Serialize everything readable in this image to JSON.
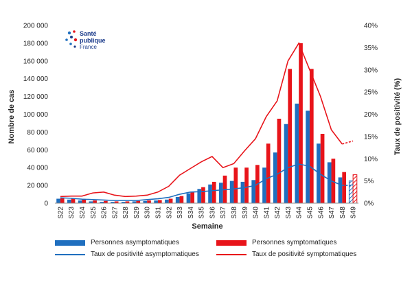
{
  "chart_data": {
    "type": "bar+line",
    "title": "",
    "logo": {
      "line1": "Santé",
      "line2": "publique",
      "line3": "France"
    },
    "xlabel": "Semaine",
    "ylabel": "Nombre de cas",
    "y2label": "Taux de positivité (%)",
    "ylim": [
      0,
      200000
    ],
    "y2lim": [
      0,
      40
    ],
    "yticks": [
      "0",
      "20 000",
      "40 000",
      "60 000",
      "80 000",
      "100 000",
      "120 000",
      "140 000",
      "160 000",
      "180 000",
      "200 000"
    ],
    "y2ticks": [
      "0%",
      "5%",
      "10%",
      "15%",
      "20%",
      "25%",
      "30%",
      "35%",
      "40%"
    ],
    "categories": [
      "S22",
      "S23",
      "S24",
      "S25",
      "S26",
      "S27",
      "S28",
      "S29",
      "S30",
      "S31",
      "S32",
      "S33",
      "S34",
      "S35",
      "S36",
      "S37",
      "S38",
      "S39",
      "S40",
      "S41",
      "S42",
      "S43",
      "S44",
      "S45",
      "S46",
      "S47",
      "S48",
      "S49"
    ],
    "series": [
      {
        "name": "Personnes asymptomatiques",
        "kind": "bar",
        "color": "#1f6fbf",
        "values": [
          5000,
          4000,
          3000,
          2000,
          1500,
          1500,
          1500,
          2000,
          2500,
          3000,
          4000,
          7000,
          11000,
          16000,
          21000,
          23000,
          25000,
          24000,
          26000,
          40000,
          57000,
          89000,
          112000,
          104000,
          67000,
          46000,
          29000,
          25000
        ],
        "partial_last": true
      },
      {
        "name": "Personnes symptomatiques",
        "kind": "bar",
        "color": "#e8141a",
        "values": [
          6000,
          5000,
          4000,
          3000,
          2500,
          2000,
          2000,
          2500,
          3000,
          3500,
          5000,
          8000,
          13000,
          18000,
          24000,
          31000,
          40000,
          40000,
          43000,
          67000,
          95000,
          151000,
          180000,
          151000,
          78000,
          50000,
          35000,
          32000
        ],
        "partial_last": true
      },
      {
        "name": "Taux de positivité asymptomatiques",
        "kind": "line",
        "axis": "y2",
        "color": "#1f6fbf",
        "values": [
          1.2,
          1.1,
          0.9,
          0.8,
          0.7,
          0.6,
          0.6,
          0.6,
          0.8,
          1.0,
          1.3,
          2.0,
          2.5,
          2.6,
          2.8,
          3.0,
          3.2,
          3.5,
          4.0,
          5.5,
          6.5,
          8.0,
          8.8,
          8.3,
          6.5,
          5.0,
          4.0,
          4.0
        ],
        "dashed_last_segment": true
      },
      {
        "name": "Taux de positivité symptomatiques",
        "kind": "line",
        "axis": "y2",
        "color": "#e8141a",
        "values": [
          1.5,
          1.6,
          1.6,
          2.3,
          2.5,
          1.8,
          1.5,
          1.6,
          1.8,
          2.5,
          3.8,
          6.3,
          7.8,
          9.3,
          10.5,
          8.0,
          8.9,
          11.8,
          14.5,
          19.5,
          23.0,
          32.0,
          36.0,
          30.0,
          24.0,
          16.5,
          13.3,
          14.0
        ],
        "dashed_last_segment": true
      }
    ],
    "legend_placement": "bottom"
  }
}
